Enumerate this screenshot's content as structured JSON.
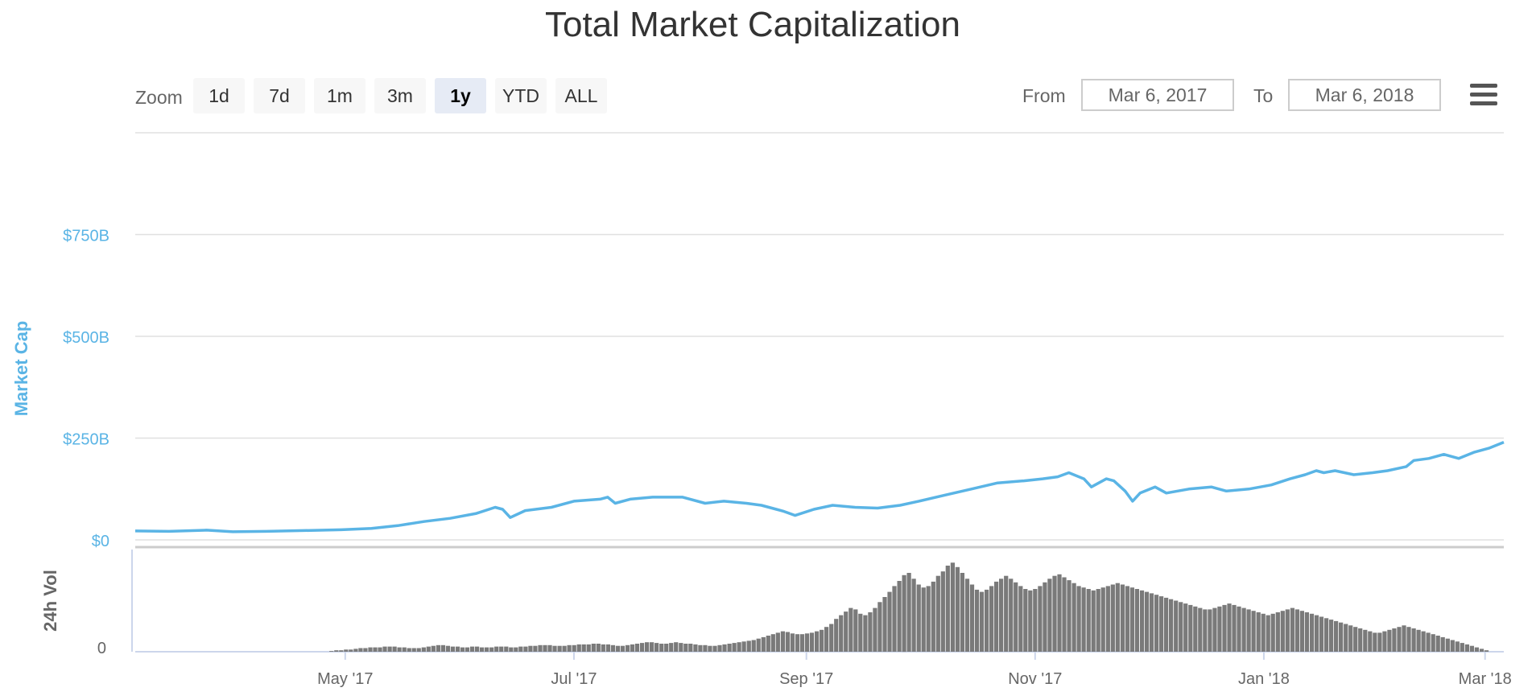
{
  "title": "Total Market Capitalization",
  "toolbar": {
    "zoom_label": "Zoom",
    "zoom_buttons": [
      "1d",
      "7d",
      "1m",
      "3m",
      "1y",
      "YTD",
      "ALL"
    ],
    "active_zoom": "1y",
    "from_label": "From",
    "from_value": "Mar 6, 2017",
    "to_label": "To",
    "to_value": "Mar 6, 2018",
    "menu_icon": "hamburger-menu-icon"
  },
  "colors": {
    "line": "#5ab4e5",
    "volume": "#7a7a7a",
    "axis_text": "#5ab4e5",
    "grid": "#e0e0e0"
  },
  "chart_data": {
    "type": "line",
    "title": "Total Market Capitalization",
    "ylabel": "Market Cap",
    "volume_label": "24h Vol",
    "ylim": [
      0,
      1000
    ],
    "y_ticks": [
      {
        "value": 0,
        "label": "$0"
      },
      {
        "value": 250,
        "label": "$250B"
      },
      {
        "value": 500,
        "label": "$500B"
      },
      {
        "value": 750,
        "label": "$750B"
      }
    ],
    "volume_ticks": [
      {
        "value": 0,
        "label": "0"
      }
    ],
    "x_ticks": [
      {
        "date": "2017-05-01",
        "label": "May '17"
      },
      {
        "date": "2017-07-01",
        "label": "Jul '17"
      },
      {
        "date": "2017-09-01",
        "label": "Sep '17"
      },
      {
        "date": "2017-11-01",
        "label": "Nov '17"
      },
      {
        "date": "2018-01-01",
        "label": "Jan '18"
      },
      {
        "date": "2018-03-01",
        "label": "Mar '18"
      }
    ],
    "xlim": [
      "2017-03-06",
      "2018-03-06"
    ],
    "grid": true,
    "series": [
      {
        "values": [
          [
            "2017-03-06",
            22
          ],
          [
            "2017-03-15",
            21
          ],
          [
            "2017-03-25",
            24
          ],
          [
            "2017-04-01",
            20
          ],
          [
            "2017-04-10",
            21
          ],
          [
            "2017-04-20",
            23
          ],
          [
            "2017-04-30",
            25
          ],
          [
            "2017-05-08",
            28
          ],
          [
            "2017-05-15",
            35
          ],
          [
            "2017-05-22",
            45
          ],
          [
            "2017-05-29",
            53
          ],
          [
            "2017-06-05",
            65
          ],
          [
            "2017-06-10",
            80
          ],
          [
            "2017-06-12",
            75
          ],
          [
            "2017-06-14",
            55
          ],
          [
            "2017-06-18",
            72
          ],
          [
            "2017-06-25",
            80
          ],
          [
            "2017-07-01",
            95
          ],
          [
            "2017-07-08",
            100
          ],
          [
            "2017-07-10",
            105
          ],
          [
            "2017-07-12",
            90
          ],
          [
            "2017-07-16",
            100
          ],
          [
            "2017-07-22",
            105
          ],
          [
            "2017-07-30",
            105
          ],
          [
            "2017-08-05",
            90
          ],
          [
            "2017-08-10",
            95
          ],
          [
            "2017-08-16",
            90
          ],
          [
            "2017-08-20",
            85
          ],
          [
            "2017-08-24",
            75
          ],
          [
            "2017-08-26",
            70
          ],
          [
            "2017-08-29",
            60
          ],
          [
            "2017-09-03",
            75
          ],
          [
            "2017-09-08",
            85
          ],
          [
            "2017-09-14",
            80
          ],
          [
            "2017-09-20",
            78
          ],
          [
            "2017-09-26",
            85
          ],
          [
            "2017-10-01",
            95
          ],
          [
            "2017-10-08",
            110
          ],
          [
            "2017-10-15",
            125
          ],
          [
            "2017-10-22",
            140
          ],
          [
            "2017-10-29",
            145
          ],
          [
            "2017-11-03",
            150
          ],
          [
            "2017-11-07",
            155
          ],
          [
            "2017-11-10",
            165
          ],
          [
            "2017-11-14",
            150
          ],
          [
            "2017-11-16",
            130
          ],
          [
            "2017-11-20",
            150
          ],
          [
            "2017-11-22",
            145
          ],
          [
            "2017-11-25",
            120
          ],
          [
            "2017-11-27",
            95
          ],
          [
            "2017-11-29",
            115
          ],
          [
            "2017-12-03",
            130
          ],
          [
            "2017-12-06",
            115
          ],
          [
            "2017-12-12",
            125
          ],
          [
            "2017-12-18",
            130
          ],
          [
            "2017-12-22",
            120
          ],
          [
            "2017-12-28",
            125
          ],
          [
            "2018-01-03",
            135
          ],
          [
            "2018-01-08",
            150
          ],
          [
            "2018-01-12",
            160
          ],
          [
            "2018-01-15",
            170
          ],
          [
            "2018-01-17",
            165
          ],
          [
            "2018-01-20",
            170
          ],
          [
            "2018-01-25",
            160
          ],
          [
            "2018-01-30",
            165
          ],
          [
            "2018-02-03",
            170
          ],
          [
            "2018-02-08",
            180
          ],
          [
            "2018-02-10",
            195
          ],
          [
            "2018-02-14",
            200
          ],
          [
            "2018-02-18",
            210
          ],
          [
            "2018-02-22",
            200
          ],
          [
            "2018-02-26",
            215
          ],
          [
            "2018-03-02",
            225
          ],
          [
            "2018-03-06",
            240
          ]
        ]
      }
    ],
    "volume_bars": [
      0,
      0,
      0,
      0,
      0,
      0,
      0,
      0,
      0,
      0,
      0,
      0,
      0,
      0,
      0,
      0,
      0,
      0,
      0,
      0,
      0,
      0,
      0,
      0,
      0,
      0,
      0,
      0,
      0,
      0,
      0,
      0,
      0,
      0,
      0,
      0,
      0,
      0,
      0,
      0,
      1,
      2,
      2,
      3,
      3,
      4,
      5,
      5,
      6,
      6,
      6,
      7,
      7,
      7,
      6,
      6,
      5,
      5,
      5,
      6,
      7,
      8,
      9,
      9,
      8,
      7,
      7,
      6,
      6,
      7,
      7,
      6,
      6,
      6,
      7,
      7,
      7,
      6,
      6,
      7,
      7,
      8,
      8,
      9,
      9,
      9,
      8,
      8,
      8,
      9,
      9,
      10,
      10,
      10,
      11,
      11,
      10,
      10,
      9,
      8,
      8,
      9,
      10,
      11,
      12,
      13,
      13,
      12,
      11,
      11,
      12,
      13,
      12,
      11,
      11,
      10,
      9,
      9,
      8,
      8,
      9,
      10,
      11,
      12,
      13,
      14,
      15,
      16,
      18,
      20,
      22,
      24,
      26,
      28,
      27,
      25,
      24,
      24,
      25,
      26,
      28,
      30,
      34,
      38,
      45,
      50,
      55,
      60,
      58,
      52,
      50,
      54,
      60,
      68,
      75,
      82,
      90,
      97,
      105,
      108,
      100,
      92,
      88,
      90,
      96,
      104,
      110,
      118,
      122,
      116,
      108,
      100,
      92,
      85,
      82,
      85,
      90,
      96,
      100,
      104,
      100,
      95,
      90,
      86,
      84,
      86,
      90,
      95,
      100,
      104,
      106,
      102,
      98,
      94,
      90,
      88,
      86,
      84,
      86,
      88,
      90,
      92,
      94,
      92,
      90,
      88,
      86,
      84,
      82,
      80,
      78,
      76,
      74,
      72,
      70,
      68,
      66,
      64,
      62,
      60,
      58,
      58,
      60,
      62,
      64,
      66,
      64,
      62,
      60,
      58,
      56,
      54,
      52,
      50,
      52,
      54,
      56,
      58,
      60,
      58,
      56,
      54,
      52,
      50,
      48,
      46,
      44,
      42,
      40,
      38,
      36,
      34,
      32,
      30,
      28,
      26,
      26,
      28,
      30,
      32,
      34,
      36,
      34,
      32,
      30,
      28,
      26,
      24,
      22,
      20,
      18,
      16,
      14,
      12,
      10,
      8,
      6,
      4,
      2,
      0,
      0,
      0
    ],
    "volume_ylim": [
      0,
      140
    ]
  }
}
